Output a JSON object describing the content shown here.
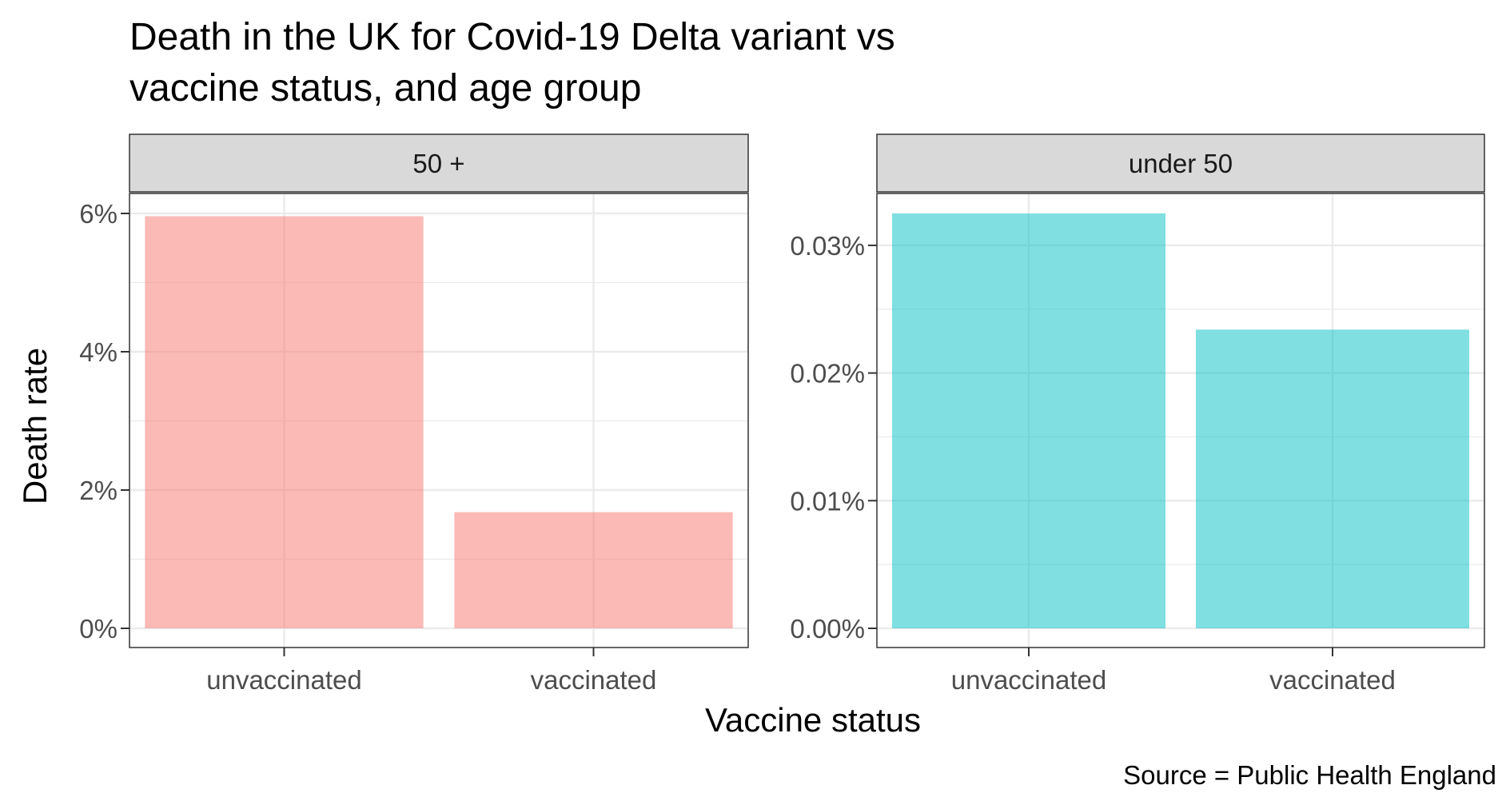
{
  "chart": {
    "title_line1": "Death in the UK for Covid-19 Delta variant vs",
    "title_line2": "vaccine status, and age group",
    "xlabel": "Vaccine status",
    "ylabel": "Death rate",
    "caption": "Source = Public Health England"
  },
  "colors": {
    "panel_50_plus": "#F8766D",
    "panel_under_50": "#00BFC4",
    "strip_background": "#d9d9d9",
    "grid": "#ebebeb",
    "panel_border": "#333333"
  },
  "chart_data": [
    {
      "type": "bar",
      "facet": "50 +",
      "categories": [
        "unvaccinated",
        "vaccinated"
      ],
      "values": [
        5.96,
        1.68
      ],
      "value_unit": "%",
      "ylim": [
        0,
        6.0
      ],
      "yticks": [
        0,
        2,
        4,
        6
      ],
      "ytick_labels": [
        "0%",
        "2%",
        "4%",
        "6%"
      ],
      "xlabel": "Vaccine status",
      "ylabel": "Death rate",
      "grid": true
    },
    {
      "type": "bar",
      "facet": "under 50",
      "categories": [
        "unvaccinated",
        "vaccinated"
      ],
      "values": [
        0.0325,
        0.0234
      ],
      "value_unit": "%",
      "ylim": [
        0,
        0.0325
      ],
      "yticks": [
        0,
        0.01,
        0.02,
        0.03
      ],
      "ytick_labels": [
        "0.00%",
        "0.01%",
        "0.02%",
        "0.03%"
      ],
      "xlabel": "Vaccine status",
      "ylabel": "Death rate",
      "grid": true
    }
  ]
}
